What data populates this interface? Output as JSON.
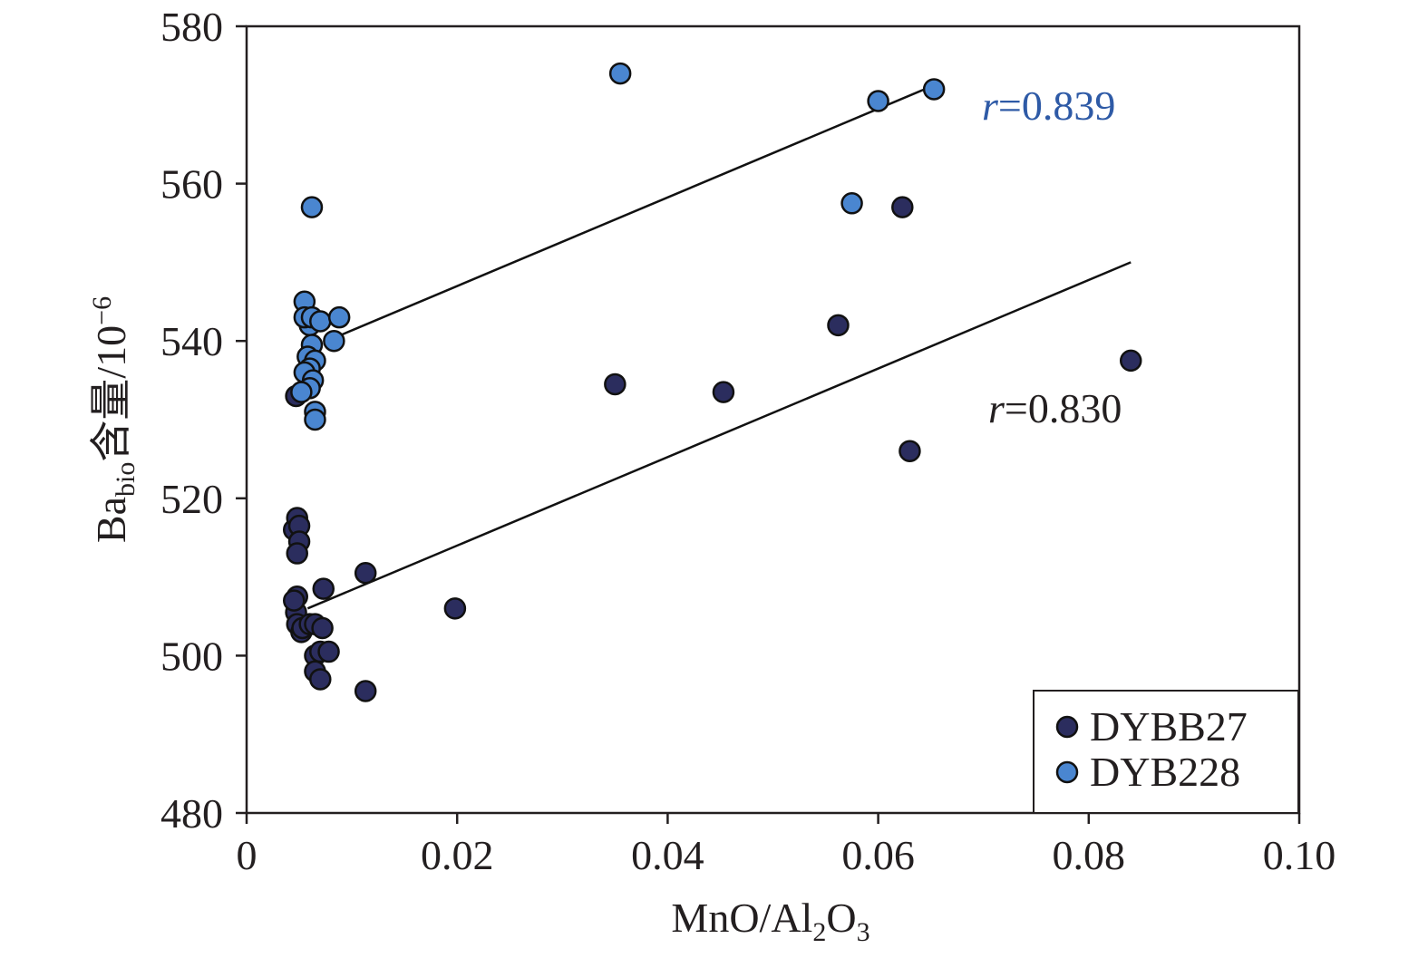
{
  "chart_data": {
    "type": "scatter",
    "title": "",
    "xlabel": {
      "main": "MnO/Al",
      "sub1": "2",
      "mid": "O",
      "sub2": "3"
    },
    "ylabel": {
      "main": "Ba",
      "sub": "bio",
      "rest": "含量/10",
      "sup": "−6"
    },
    "xlim": [
      0,
      0.1
    ],
    "ylim": [
      480,
      580
    ],
    "x_ticks": [
      0,
      0.02,
      0.04,
      0.06,
      0.08,
      0.1
    ],
    "x_tick_labels": [
      "0",
      "0.02",
      "0.04",
      "0.06",
      "0.08",
      "0.10"
    ],
    "y_ticks": [
      480,
      500,
      520,
      540,
      560,
      580
    ],
    "y_tick_labels": [
      "480",
      "500",
      "520",
      "540",
      "560",
      "580"
    ],
    "grid": false,
    "legend_position": "bottom-right",
    "series": [
      {
        "name": "DYBB27",
        "color": "#2b2d5e",
        "points": [
          [
            0.0045,
            516
          ],
          [
            0.0048,
            517.5
          ],
          [
            0.005,
            516.5
          ],
          [
            0.005,
            514.5
          ],
          [
            0.0048,
            513
          ],
          [
            0.0048,
            507.5
          ],
          [
            0.0047,
            505.5
          ],
          [
            0.0045,
            507
          ],
          [
            0.0048,
            504
          ],
          [
            0.0052,
            503
          ],
          [
            0.0053,
            503.5
          ],
          [
            0.006,
            504
          ],
          [
            0.0065,
            504
          ],
          [
            0.0072,
            503.5
          ],
          [
            0.0065,
            500
          ],
          [
            0.007,
            500.5
          ],
          [
            0.0078,
            500.5
          ],
          [
            0.0065,
            498
          ],
          [
            0.007,
            497
          ],
          [
            0.0073,
            508.5
          ],
          [
            0.0113,
            510.5
          ],
          [
            0.0113,
            495.5
          ],
          [
            0.0198,
            506
          ],
          [
            0.035,
            534.5
          ],
          [
            0.0453,
            533.5
          ],
          [
            0.0562,
            542
          ],
          [
            0.0623,
            557
          ],
          [
            0.063,
            526
          ],
          [
            0.084,
            537.5
          ],
          [
            0.0047,
            533
          ]
        ],
        "fit": {
          "x": [
            0.0058,
            0.084
          ],
          "y": [
            506,
            550
          ]
        },
        "r_label": {
          "r": "r",
          "value": "=0.830",
          "color": "#231f20"
        }
      },
      {
        "name": "DYB228",
        "color": "#4a86d0",
        "points": [
          [
            0.0055,
            545
          ],
          [
            0.006,
            542
          ],
          [
            0.0055,
            543
          ],
          [
            0.0062,
            543
          ],
          [
            0.007,
            542.5
          ],
          [
            0.0088,
            543
          ],
          [
            0.0083,
            540
          ],
          [
            0.0062,
            539.5
          ],
          [
            0.0058,
            538
          ],
          [
            0.0065,
            537.5
          ],
          [
            0.006,
            536.5
          ],
          [
            0.0055,
            536
          ],
          [
            0.0063,
            535
          ],
          [
            0.006,
            534
          ],
          [
            0.0052,
            533.5
          ],
          [
            0.0065,
            531
          ],
          [
            0.0065,
            530
          ],
          [
            0.0062,
            557
          ],
          [
            0.0355,
            574
          ],
          [
            0.0575,
            557.5
          ],
          [
            0.06,
            570.5
          ],
          [
            0.0653,
            572
          ]
        ],
        "fit": {
          "x": [
            0.0085,
            0.0653
          ],
          "y": [
            540.5,
            572.5
          ]
        },
        "r_label": {
          "r": "r",
          "value": "=0.839",
          "color": "#2e5aa6"
        }
      }
    ]
  }
}
